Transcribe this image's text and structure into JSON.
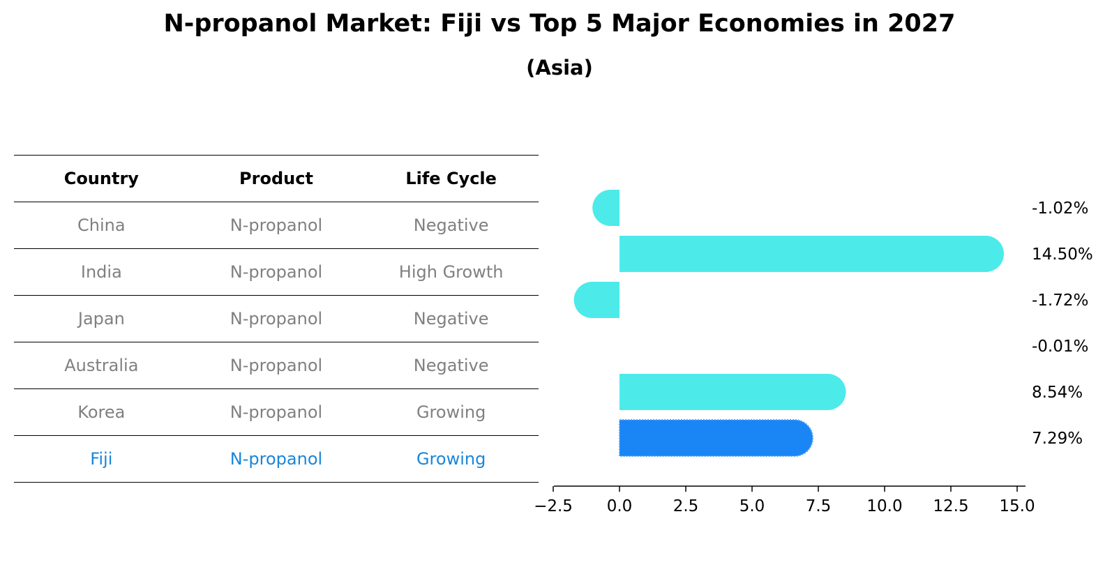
{
  "title": "N-propanol Market: Fiji vs Top 5 Major Economies in 2027",
  "subtitle": "(Asia)",
  "table": {
    "headers": [
      "Country",
      "Product",
      "Life Cycle"
    ],
    "rows": [
      {
        "country": "China",
        "product": "N-propanol",
        "life_cycle": "Negative"
      },
      {
        "country": "India",
        "product": "N-propanol",
        "life_cycle": "High Growth"
      },
      {
        "country": "Japan",
        "product": "N-propanol",
        "life_cycle": "Negative"
      },
      {
        "country": "Australia",
        "product": "N-propanol",
        "life_cycle": "Negative"
      },
      {
        "country": "Korea",
        "product": "N-propanol",
        "life_cycle": "Growing"
      },
      {
        "country": "Fiji",
        "product": "N-propanol",
        "life_cycle": "Growing"
      }
    ]
  },
  "chart_data": {
    "type": "bar",
    "orientation": "horizontal",
    "categories": [
      "China",
      "India",
      "Japan",
      "Australia",
      "Korea",
      "Fiji"
    ],
    "values": [
      -1.02,
      14.5,
      -1.72,
      -0.01,
      8.54,
      7.29
    ],
    "value_labels": [
      "-1.02%",
      "14.50%",
      "-1.72%",
      "-0.01%",
      "8.54%",
      "7.29%"
    ],
    "highlight": "Fiji",
    "xlim": [
      -2.5,
      15.0
    ],
    "xticks": [
      -2.5,
      0.0,
      2.5,
      5.0,
      7.5,
      10.0,
      12.5,
      15.0
    ],
    "xtick_labels": [
      "−2.5",
      "0.0",
      "2.5",
      "5.0",
      "7.5",
      "10.0",
      "12.5",
      "15.0"
    ],
    "colors": {
      "default": "#4deaea",
      "highlight": "#1a86f5"
    },
    "grid": false
  }
}
